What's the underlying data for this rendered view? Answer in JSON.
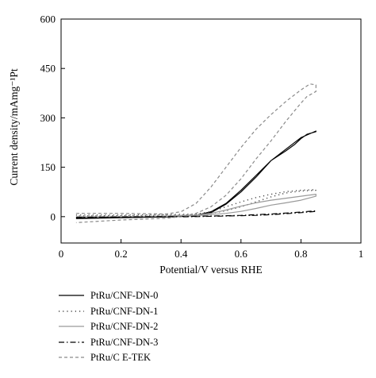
{
  "chart_data": {
    "type": "line",
    "xlabel": "Potential/V versus RHE",
    "ylabel": "Current density/mAmg⁻¹Pt",
    "xlim": [
      0,
      1
    ],
    "ylim": [
      -80,
      600
    ],
    "xticks": [
      "0",
      "0.2",
      "0.4",
      "0.6",
      "0.8",
      "1"
    ],
    "yticks": [
      "0",
      "150",
      "300",
      "450",
      "600"
    ],
    "grid": false,
    "legend_position": "below",
    "series": [
      {
        "name": "PtRu/CNF-DN-0",
        "color": "#000000",
        "style": "solid",
        "forward": [
          [
            0.05,
            -5
          ],
          [
            0.2,
            -2
          ],
          [
            0.35,
            0
          ],
          [
            0.45,
            4
          ],
          [
            0.5,
            15
          ],
          [
            0.55,
            40
          ],
          [
            0.6,
            80
          ],
          [
            0.65,
            125
          ],
          [
            0.7,
            170
          ],
          [
            0.75,
            205
          ],
          [
            0.8,
            240
          ],
          [
            0.85,
            260
          ]
        ],
        "backward": [
          [
            0.85,
            258
          ],
          [
            0.82,
            250
          ],
          [
            0.8,
            237
          ],
          [
            0.78,
            220
          ],
          [
            0.75,
            200
          ],
          [
            0.7,
            170
          ],
          [
            0.65,
            120
          ],
          [
            0.6,
            75
          ],
          [
            0.55,
            38
          ],
          [
            0.5,
            12
          ],
          [
            0.45,
            3
          ],
          [
            0.35,
            -1
          ],
          [
            0.2,
            -3
          ],
          [
            0.05,
            -6
          ]
        ]
      },
      {
        "name": "PtRu/CNF-DN-1",
        "color": "#444444",
        "style": "dotted",
        "forward": [
          [
            0.05,
            5
          ],
          [
            0.2,
            5
          ],
          [
            0.35,
            6
          ],
          [
            0.45,
            8
          ],
          [
            0.5,
            15
          ],
          [
            0.55,
            30
          ],
          [
            0.6,
            45
          ],
          [
            0.65,
            58
          ],
          [
            0.7,
            68
          ],
          [
            0.75,
            76
          ],
          [
            0.8,
            80
          ],
          [
            0.85,
            82
          ]
        ],
        "backward": [
          [
            0.85,
            80
          ],
          [
            0.8,
            78
          ],
          [
            0.75,
            72
          ],
          [
            0.7,
            60
          ],
          [
            0.65,
            45
          ],
          [
            0.6,
            30
          ],
          [
            0.55,
            18
          ],
          [
            0.5,
            10
          ],
          [
            0.45,
            6
          ],
          [
            0.35,
            4
          ],
          [
            0.2,
            3
          ],
          [
            0.05,
            2
          ]
        ]
      },
      {
        "name": "PtRu/CNF-DN-2",
        "color": "#9a9a9a",
        "style": "solid",
        "forward": [
          [
            0.05,
            0
          ],
          [
            0.2,
            0
          ],
          [
            0.35,
            2
          ],
          [
            0.45,
            5
          ],
          [
            0.5,
            10
          ],
          [
            0.55,
            20
          ],
          [
            0.6,
            32
          ],
          [
            0.65,
            42
          ],
          [
            0.7,
            50
          ],
          [
            0.75,
            56
          ],
          [
            0.8,
            62
          ],
          [
            0.85,
            68
          ]
        ],
        "backward": [
          [
            0.85,
            62
          ],
          [
            0.8,
            50
          ],
          [
            0.75,
            42
          ],
          [
            0.7,
            35
          ],
          [
            0.65,
            25
          ],
          [
            0.6,
            16
          ],
          [
            0.55,
            10
          ],
          [
            0.5,
            6
          ],
          [
            0.45,
            3
          ],
          [
            0.35,
            1
          ],
          [
            0.2,
            0
          ],
          [
            0.05,
            -1
          ]
        ]
      },
      {
        "name": "PtRu/CNF-DN-3",
        "color": "#000000",
        "style": "dashdot",
        "forward": [
          [
            0.05,
            -2
          ],
          [
            0.2,
            -1
          ],
          [
            0.35,
            0
          ],
          [
            0.45,
            1
          ],
          [
            0.5,
            2
          ],
          [
            0.55,
            3
          ],
          [
            0.6,
            4
          ],
          [
            0.65,
            6
          ],
          [
            0.7,
            8
          ],
          [
            0.75,
            11
          ],
          [
            0.8,
            14
          ],
          [
            0.85,
            18
          ]
        ],
        "backward": [
          [
            0.85,
            16
          ],
          [
            0.8,
            12
          ],
          [
            0.75,
            9
          ],
          [
            0.7,
            6
          ],
          [
            0.65,
            4
          ],
          [
            0.6,
            3
          ],
          [
            0.55,
            2
          ],
          [
            0.5,
            1
          ],
          [
            0.45,
            0
          ],
          [
            0.35,
            -1
          ],
          [
            0.2,
            -2
          ],
          [
            0.05,
            -3
          ]
        ]
      },
      {
        "name": "PtRu/C E-TEK",
        "color": "#8a8a8a",
        "style": "dashed",
        "forward": [
          [
            0.05,
            10
          ],
          [
            0.2,
            10
          ],
          [
            0.35,
            8
          ],
          [
            0.4,
            15
          ],
          [
            0.45,
            40
          ],
          [
            0.5,
            90
          ],
          [
            0.55,
            150
          ],
          [
            0.6,
            210
          ],
          [
            0.65,
            265
          ],
          [
            0.7,
            310
          ],
          [
            0.75,
            350
          ],
          [
            0.8,
            385
          ],
          [
            0.83,
            403
          ],
          [
            0.85,
            400
          ]
        ],
        "backward": [
          [
            0.85,
            380
          ],
          [
            0.82,
            365
          ],
          [
            0.8,
            345
          ],
          [
            0.75,
            290
          ],
          [
            0.7,
            230
          ],
          [
            0.65,
            175
          ],
          [
            0.6,
            115
          ],
          [
            0.55,
            65
          ],
          [
            0.5,
            30
          ],
          [
            0.45,
            10
          ],
          [
            0.4,
            0
          ],
          [
            0.35,
            -5
          ],
          [
            0.2,
            -10
          ],
          [
            0.05,
            -18
          ]
        ]
      }
    ]
  }
}
